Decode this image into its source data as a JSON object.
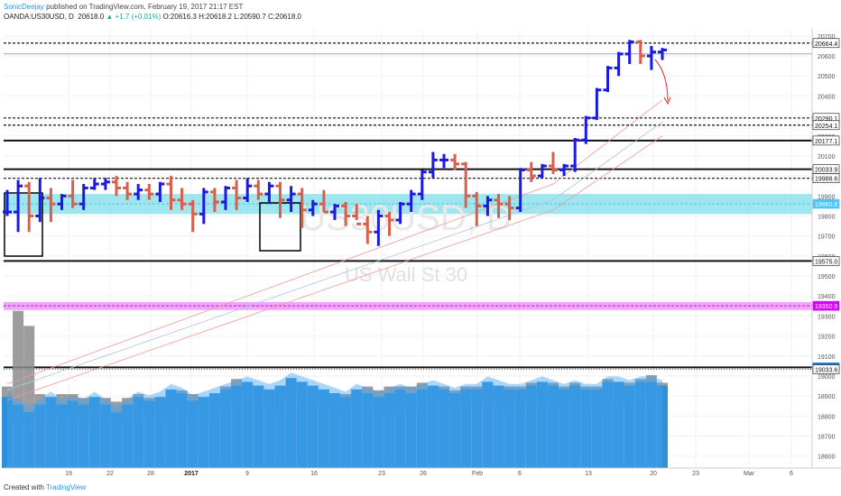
{
  "header": {
    "author": "SonicDeejay",
    "published": "published on TradingView.com, February 19, 2017 21:17 EST",
    "symbol": "OANDA:US30USD, D",
    "last": "20618.0",
    "change": "▲ +1.7 (+0.01%)",
    "ohlc": "O:20616.3 H:20618.2 L:20590.7 C:20618.0"
  },
  "footer": {
    "created_with": "Created with",
    "brand": "TradingView"
  },
  "colors": {
    "up": "#1a1ae0",
    "down": "#d95f4a",
    "volume": "#2f8fd8",
    "volume_area": "#42a5f5",
    "volume_gray": "#8c8c8c",
    "band_cyan": "#80deea",
    "band_magenta": "#ea80fc",
    "ma_red": "#ef9a9a",
    "ma_blue": "#b0c4de",
    "arrow": "#d32f2f"
  },
  "chart_data": {
    "type": "ohlc",
    "watermark": {
      "symbol": "US30USD, D",
      "name": "US Wall St 30"
    },
    "y_axis": {
      "min": 18540,
      "max": 20740,
      "ticks": [
        20700,
        20600,
        20500,
        20400,
        20300,
        20200,
        20100,
        20000,
        19900,
        19800,
        19700,
        19600,
        19500,
        19400,
        19300,
        19200,
        19100,
        19000,
        18900,
        18800,
        18700,
        18600
      ]
    },
    "x_axis": {
      "ticks": [
        "19",
        "22",
        "28",
        "2017",
        "9",
        "16",
        "23",
        "26",
        "Feb",
        "6",
        "13",
        "20",
        "23",
        "Mar",
        "6"
      ]
    },
    "price_labels": [
      {
        "value": 20664.4,
        "text": "20664.4",
        "style": "dashed"
      },
      {
        "value": 20290.1,
        "text": "20290.1",
        "style": "dashed"
      },
      {
        "value": 20254.1,
        "text": "20254.1",
        "style": "dashed"
      },
      {
        "value": 20177.1,
        "text": "20177.1",
        "style": "solid"
      },
      {
        "value": 20033.9,
        "text": "20033.9",
        "style": "solid"
      },
      {
        "value": 19988.6,
        "text": "19988.6",
        "style": "dashed"
      },
      {
        "value": 19860.8,
        "text": "19860.8",
        "style": "band"
      },
      {
        "value": 19575.0,
        "text": "19575.0",
        "style": "solid"
      },
      {
        "value": 19350.9,
        "text": "19350.9",
        "style": "magenta"
      },
      {
        "value": 19043.1,
        "text": "19043.1",
        "style": "solid"
      },
      {
        "value": 19033.6,
        "text": "19033.6",
        "style": "dotted"
      }
    ],
    "bars": [
      [
        19820,
        19930,
        19800,
        19820
      ],
      [
        19820,
        19980,
        19720,
        19950
      ],
      [
        19950,
        19970,
        19720,
        19800
      ],
      [
        19800,
        19990,
        19770,
        19890
      ],
      [
        19890,
        19940,
        19770,
        19860
      ],
      [
        19860,
        19910,
        19830,
        19900
      ],
      [
        19900,
        19980,
        19840,
        19860
      ],
      [
        19860,
        19960,
        19830,
        19940
      ],
      [
        19940,
        19990,
        19930,
        19960
      ],
      [
        19960,
        19990,
        19930,
        19970
      ],
      [
        19970,
        20000,
        19900,
        19940
      ],
      [
        19940,
        19970,
        19880,
        19910
      ],
      [
        19910,
        19960,
        19880,
        19930
      ],
      [
        19930,
        19960,
        19880,
        19910
      ],
      [
        19910,
        19970,
        19870,
        19960
      ],
      [
        19960,
        20000,
        19830,
        19880
      ],
      [
        19880,
        19940,
        19830,
        19860
      ],
      [
        19860,
        19880,
        19720,
        19810
      ],
      [
        19810,
        19940,
        19760,
        19920
      ],
      [
        19920,
        19940,
        19820,
        19870
      ],
      [
        19870,
        19950,
        19830,
        19940
      ],
      [
        19940,
        19980,
        19830,
        19890
      ],
      [
        19890,
        19990,
        19870,
        19950
      ],
      [
        19950,
        19980,
        19880,
        19910
      ],
      [
        19910,
        19970,
        19860,
        19950
      ],
      [
        19950,
        19970,
        19790,
        19880
      ],
      [
        19880,
        19950,
        19820,
        19910
      ],
      [
        19910,
        19940,
        19740,
        19830
      ],
      [
        19830,
        19880,
        19800,
        19860
      ],
      [
        19860,
        19930,
        19820,
        19820
      ],
      [
        19820,
        19860,
        19780,
        19850
      ],
      [
        19850,
        19870,
        19750,
        19800
      ],
      [
        19800,
        19860,
        19780,
        19760
      ],
      [
        19760,
        19800,
        19660,
        19720
      ],
      [
        19720,
        19830,
        19650,
        19800
      ],
      [
        19800,
        19820,
        19700,
        19780
      ],
      [
        19780,
        19870,
        19760,
        19860
      ],
      [
        19860,
        19930,
        19820,
        19910
      ],
      [
        19910,
        20030,
        19880,
        20020
      ],
      [
        20020,
        20120,
        19990,
        20080
      ],
      [
        20080,
        20110,
        20040,
        20080
      ],
      [
        20080,
        20110,
        20030,
        20060
      ],
      [
        20060,
        20070,
        19840,
        19900
      ],
      [
        19900,
        19920,
        19750,
        19850
      ],
      [
        19850,
        19900,
        19800,
        19880
      ],
      [
        19880,
        19910,
        19790,
        19860
      ],
      [
        19860,
        19900,
        19780,
        19840
      ],
      [
        19840,
        20040,
        19820,
        20030
      ],
      [
        20030,
        20070,
        19970,
        20000
      ],
      [
        20000,
        20060,
        19990,
        20050
      ],
      [
        20050,
        20120,
        20010,
        20030
      ],
      [
        20030,
        20060,
        20000,
        20050
      ],
      [
        20050,
        20190,
        20020,
        20180
      ],
      [
        20180,
        20300,
        20160,
        20290
      ],
      [
        20290,
        20440,
        20280,
        20430
      ],
      [
        20430,
        20550,
        20420,
        20540
      ],
      [
        20540,
        20620,
        20500,
        20610
      ],
      [
        20610,
        20680,
        20560,
        20670
      ],
      [
        20670,
        20680,
        20560,
        20600
      ],
      [
        20600,
        20650,
        20530,
        20620
      ],
      [
        20620,
        20640,
        20580,
        20630
      ]
    ],
    "volume": [
      [
        14,
        12
      ],
      [
        12,
        32
      ],
      [
        10,
        28
      ],
      [
        12,
        10
      ],
      [
        14,
        9
      ],
      [
        12,
        10
      ],
      [
        13,
        10
      ],
      [
        12,
        9
      ],
      [
        14,
        9
      ],
      [
        12,
        9
      ],
      [
        10,
        8
      ],
      [
        12,
        9
      ],
      [
        14,
        10
      ],
      [
        13,
        9
      ],
      [
        14,
        9
      ],
      [
        16,
        10
      ],
      [
        15,
        11
      ],
      [
        13,
        10
      ],
      [
        14,
        9
      ],
      [
        15,
        10
      ],
      [
        16,
        12
      ],
      [
        17,
        14
      ],
      [
        18,
        13
      ],
      [
        17,
        12
      ],
      [
        16,
        11
      ],
      [
        17,
        12
      ],
      [
        19,
        13
      ],
      [
        18,
        12
      ],
      [
        17,
        11
      ],
      [
        16,
        11
      ],
      [
        15,
        9
      ],
      [
        14,
        10
      ],
      [
        16,
        11
      ],
      [
        15,
        12
      ],
      [
        14,
        11
      ],
      [
        15,
        12
      ],
      [
        16,
        12
      ],
      [
        15,
        12
      ],
      [
        16,
        13
      ],
      [
        17,
        12
      ],
      [
        16,
        12
      ],
      [
        15,
        11
      ],
      [
        16,
        12
      ],
      [
        16,
        12
      ],
      [
        18,
        13
      ],
      [
        17,
        12
      ],
      [
        16,
        12
      ],
      [
        16,
        12
      ],
      [
        17,
        13
      ],
      [
        18,
        12
      ],
      [
        17,
        13
      ],
      [
        16,
        12
      ],
      [
        17,
        13
      ],
      [
        16,
        12
      ],
      [
        16,
        12
      ],
      [
        18,
        14
      ],
      [
        18,
        13
      ],
      [
        17,
        13
      ],
      [
        18,
        14
      ],
      [
        18,
        15
      ],
      [
        17,
        13
      ]
    ]
  }
}
